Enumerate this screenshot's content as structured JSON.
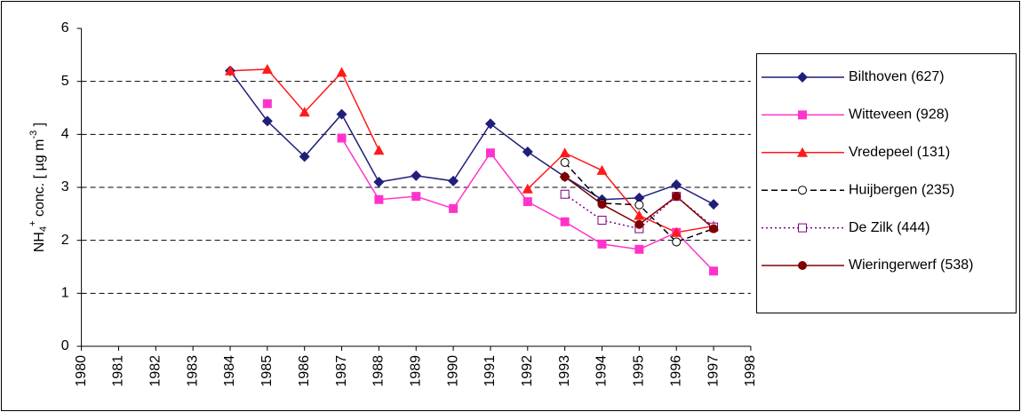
{
  "chart_data": {
    "type": "line",
    "y_label_parts": [
      "NH",
      "4",
      "+",
      " conc. [ µg m",
      "-3",
      " ]"
    ],
    "x": [
      1984,
      1985,
      1986,
      1987,
      1988,
      1989,
      1990,
      1991,
      1992,
      1993,
      1994,
      1995,
      1996,
      1997
    ],
    "xlim": [
      1980,
      1998
    ],
    "xticks": [
      1980,
      1981,
      1982,
      1983,
      1984,
      1985,
      1986,
      1987,
      1988,
      1989,
      1990,
      1991,
      1992,
      1993,
      1994,
      1995,
      1996,
      1997,
      1998
    ],
    "ylim": [
      0,
      6
    ],
    "yticks": [
      0,
      1,
      2,
      3,
      4,
      5,
      6
    ],
    "grid": true,
    "legend": "right",
    "series": [
      {
        "name": "Bilthoven (627)",
        "color": "#1f1f7a",
        "marker": "diamond",
        "dash": "solid",
        "values": [
          5.2,
          4.25,
          3.58,
          4.38,
          3.1,
          3.22,
          3.12,
          4.2,
          3.67,
          3.2,
          2.77,
          2.8,
          3.05,
          2.68
        ]
      },
      {
        "name": "Witteveen (928)",
        "color": "#ff33cc",
        "marker": "square",
        "dash": "solid",
        "values": [
          null,
          4.58,
          null,
          3.93,
          2.77,
          2.83,
          2.6,
          3.65,
          2.73,
          2.35,
          1.93,
          1.83,
          2.15,
          1.42
        ]
      },
      {
        "name": "Vredepeel (131)",
        "color": "#ff1a1a",
        "marker": "triangle",
        "dash": "solid",
        "values": [
          5.2,
          5.23,
          4.42,
          5.17,
          3.7,
          null,
          null,
          null,
          2.97,
          3.65,
          3.32,
          2.47,
          2.15,
          2.27
        ]
      },
      {
        "name": "Huijbergen (235)",
        "color": "#000000",
        "marker": "open-circle",
        "dash": "dashed",
        "values": [
          null,
          null,
          null,
          null,
          null,
          null,
          null,
          null,
          null,
          3.47,
          2.7,
          2.67,
          1.97,
          2.22
        ]
      },
      {
        "name": "De Zilk (444)",
        "color": "#800080",
        "marker": "open-square",
        "dash": "dotted",
        "values": [
          null,
          null,
          null,
          null,
          null,
          null,
          null,
          null,
          null,
          2.87,
          2.38,
          2.22,
          2.83,
          2.25
        ]
      },
      {
        "name": "Wieringerwerf (538)",
        "color": "#800000",
        "marker": "circle",
        "dash": "solid",
        "values": [
          null,
          null,
          null,
          null,
          null,
          null,
          null,
          null,
          null,
          3.2,
          2.68,
          2.3,
          2.83,
          2.22
        ]
      }
    ]
  }
}
